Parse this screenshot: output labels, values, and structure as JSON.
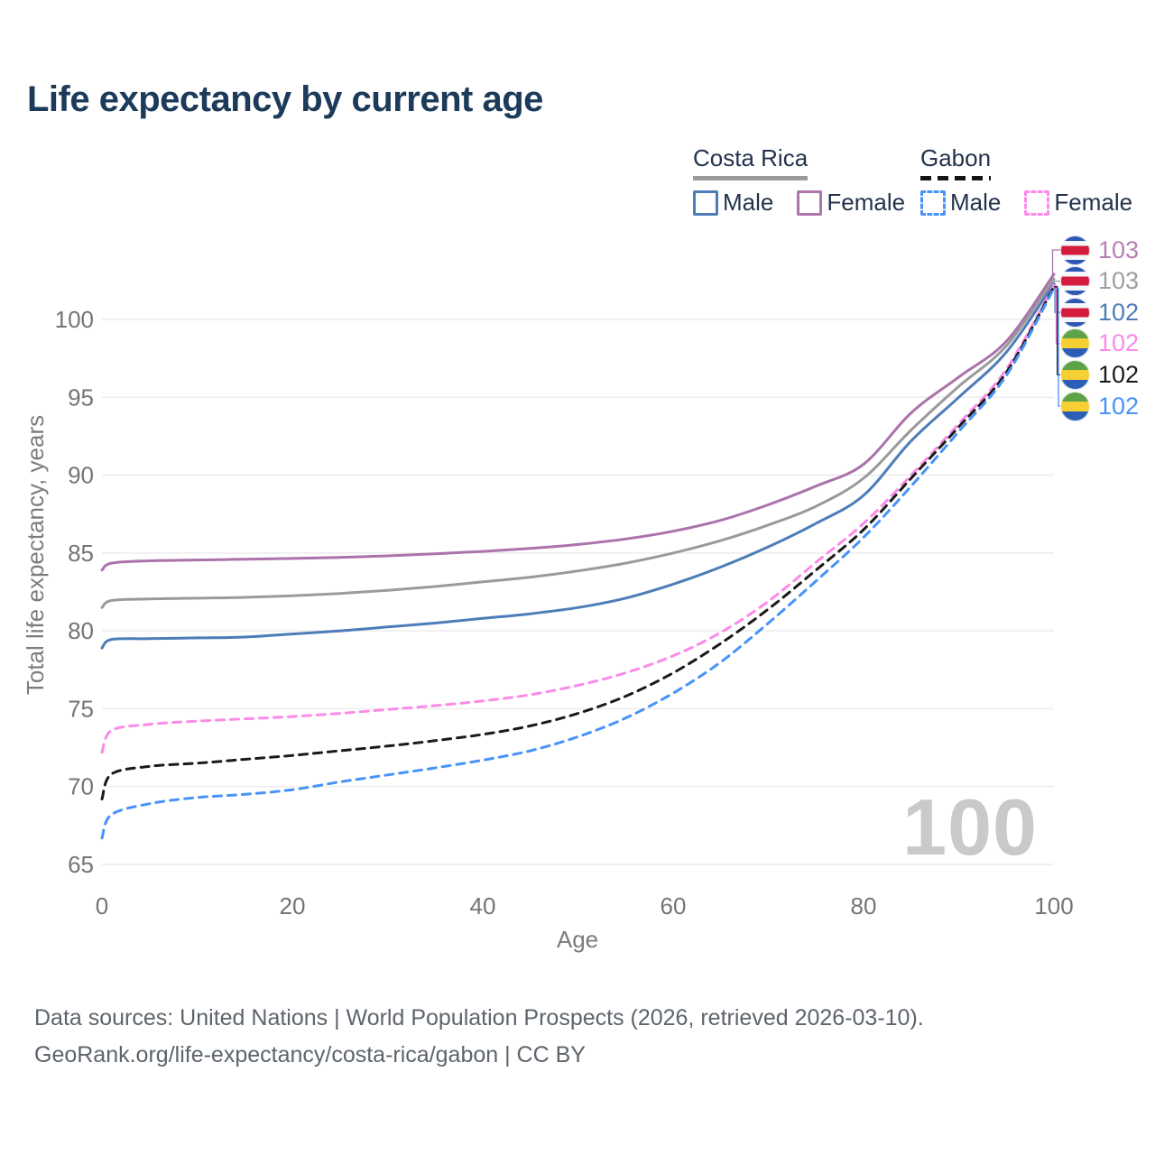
{
  "title": "Life expectancy by current age",
  "legend": {
    "groups": [
      {
        "country": "Costa Rica",
        "underline_style": "solid",
        "underline_color": "#9a9a9a",
        "items": [
          {
            "label": "Male",
            "color": "#4d7db8",
            "dashed": false
          },
          {
            "label": "Female",
            "color": "#ad74ae",
            "dashed": false
          }
        ]
      },
      {
        "country": "Gabon",
        "underline_style": "dashed",
        "underline_color": "#141414",
        "items": [
          {
            "label": "Male",
            "color": "#4793f8",
            "dashed": true
          },
          {
            "label": "Female",
            "color": "#fb8ae8",
            "dashed": true
          }
        ]
      }
    ]
  },
  "chart_data": {
    "type": "line",
    "title": "Life expectancy by current age",
    "xlabel": "Age",
    "ylabel": "Total life expectancy, years",
    "xlim": [
      0,
      100
    ],
    "ylim": [
      65,
      103
    ],
    "xticks": [
      0,
      20,
      40,
      60,
      80,
      100
    ],
    "yticks": [
      65,
      70,
      75,
      80,
      85,
      90,
      95,
      100
    ],
    "grid": "horizontal-only",
    "legend_position": "top-right",
    "watermark_current_age": "100",
    "x": [
      0,
      1,
      5,
      10,
      15,
      20,
      25,
      30,
      35,
      40,
      45,
      50,
      55,
      60,
      65,
      70,
      75,
      80,
      85,
      90,
      95,
      100
    ],
    "series": [
      {
        "id": "costa-rica-female",
        "name": "Costa Rica Female",
        "country": "Costa Rica",
        "sex": "Female",
        "color": "#ab72ab",
        "dashed": false,
        "flag": "costa-rica",
        "end_label": "103",
        "end_label_color": "#b57fb5",
        "values": [
          83.9,
          84.35,
          84.5,
          84.55,
          84.6,
          84.65,
          84.72,
          84.82,
          84.95,
          85.1,
          85.3,
          85.55,
          85.9,
          86.4,
          87.1,
          88.1,
          89.3,
          90.7,
          94.0,
          96.3,
          98.6,
          102.9
        ]
      },
      {
        "id": "costa-rica-both",
        "name": "Costa Rica Both sexes",
        "country": "Costa Rica",
        "sex": "Both sexes",
        "color": "#9a9a9a",
        "dashed": false,
        "flag": "costa-rica",
        "end_label": "103",
        "end_label_color": "#9e9e9e",
        "values": [
          81.5,
          81.95,
          82.05,
          82.1,
          82.15,
          82.25,
          82.4,
          82.6,
          82.85,
          83.15,
          83.45,
          83.85,
          84.35,
          85.0,
          85.8,
          86.8,
          88.0,
          89.8,
          92.9,
          95.7,
          98.3,
          102.6
        ]
      },
      {
        "id": "costa-rica-male",
        "name": "Costa Rica Male",
        "country": "Costa Rica",
        "sex": "Male",
        "color": "#4d7db8",
        "dashed": false,
        "flag": "costa-rica",
        "end_label": "102",
        "end_label_color": "#4d7db8",
        "values": [
          78.9,
          79.45,
          79.5,
          79.55,
          79.6,
          79.8,
          80.0,
          80.25,
          80.5,
          80.8,
          81.1,
          81.5,
          82.1,
          83.0,
          84.1,
          85.4,
          86.9,
          88.7,
          92.2,
          95.0,
          97.9,
          102.3
        ]
      },
      {
        "id": "gabon-female",
        "name": "Gabon Female",
        "country": "Gabon",
        "sex": "Female",
        "color": "#fb8ae8",
        "dashed": true,
        "flag": "gabon",
        "end_label": "102",
        "end_label_color": "#fb8ae8",
        "values": [
          72.2,
          73.6,
          74.0,
          74.2,
          74.35,
          74.5,
          74.7,
          74.95,
          75.2,
          75.5,
          75.9,
          76.5,
          77.3,
          78.4,
          79.9,
          81.9,
          84.4,
          86.9,
          90.0,
          93.3,
          96.8,
          102.2
        ]
      },
      {
        "id": "gabon-both",
        "name": "Gabon Both sexes",
        "country": "Gabon",
        "sex": "Both sexes",
        "color": "#1a1a1a",
        "dashed": true,
        "flag": "gabon",
        "end_label": "102",
        "end_label_color": "#1a1a1a",
        "values": [
          69.2,
          70.8,
          71.3,
          71.5,
          71.75,
          72.0,
          72.3,
          72.6,
          72.95,
          73.35,
          73.9,
          74.7,
          75.8,
          77.3,
          79.2,
          81.4,
          83.9,
          86.5,
          89.8,
          93.1,
          96.6,
          102.1
        ]
      },
      {
        "id": "gabon-male",
        "name": "Gabon Male",
        "country": "Gabon",
        "sex": "Male",
        "color": "#4793f8",
        "dashed": true,
        "flag": "gabon",
        "end_label": "102",
        "end_label_color": "#4793f8",
        "values": [
          66.7,
          68.2,
          68.9,
          69.3,
          69.5,
          69.8,
          70.3,
          70.75,
          71.2,
          71.7,
          72.3,
          73.2,
          74.4,
          76.0,
          78.0,
          80.5,
          83.2,
          86.0,
          89.3,
          92.8,
          96.4,
          102.0
        ]
      }
    ]
  },
  "footer": {
    "line1": "Data sources: United Nations | World Population Prospects (2026, retrieved 2026-03-10).",
    "line2": "GeoRank.org/life-expectancy/costa-rica/gabon | CC BY"
  }
}
